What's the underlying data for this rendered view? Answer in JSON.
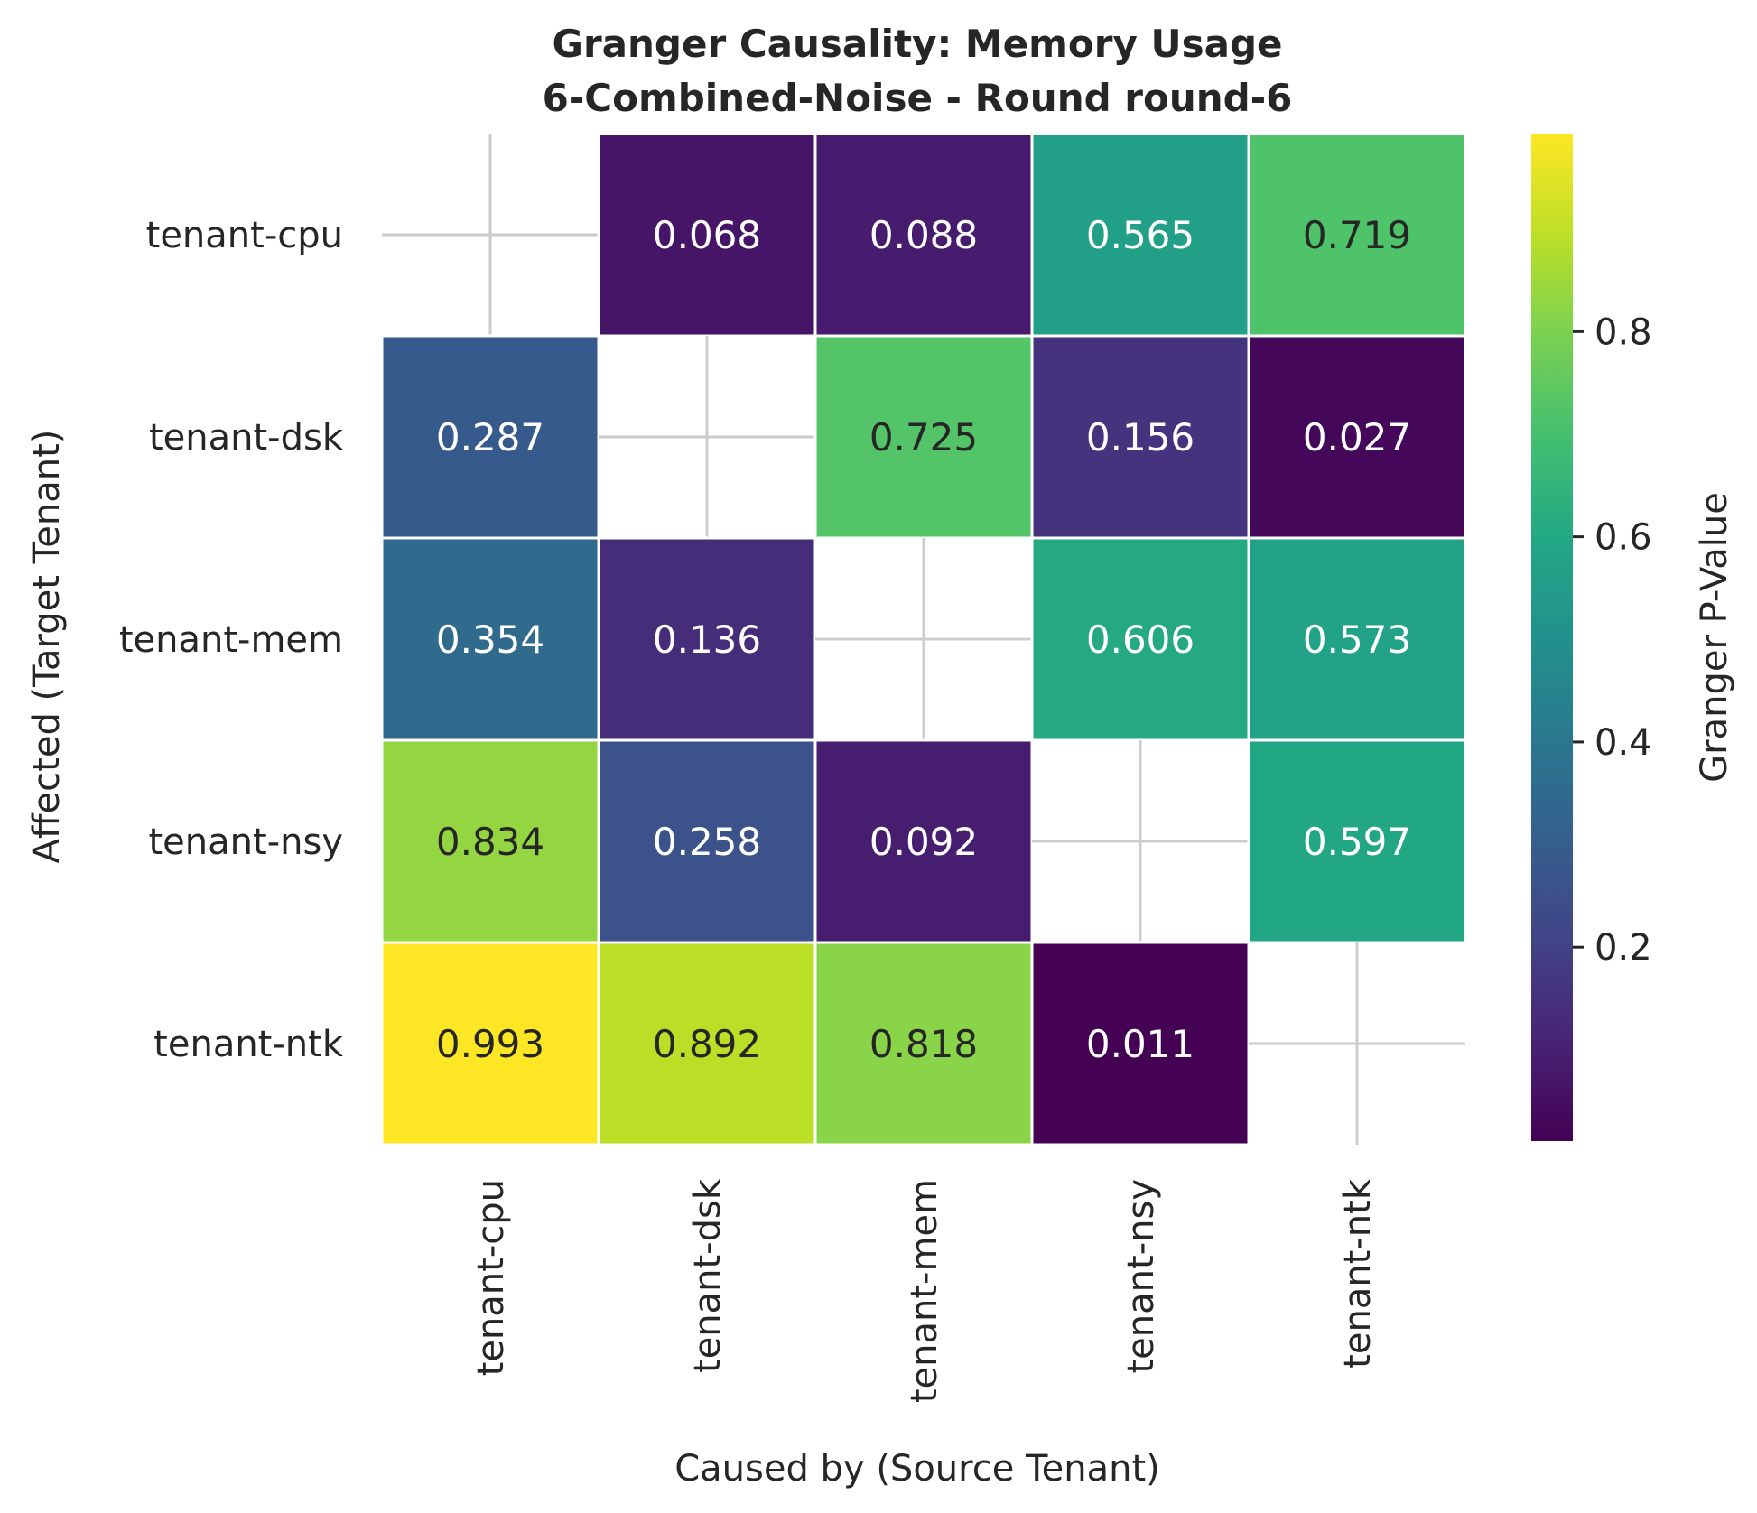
{
  "chart_data": {
    "type": "heatmap",
    "title_line1": "Granger Causality: Memory Usage",
    "title_line2": "6-Combined-Noise - Round round-6",
    "xlabel": "Caused by (Source Tenant)",
    "ylabel": "Affected (Target Tenant)",
    "x_categories": [
      "tenant-cpu",
      "tenant-dsk",
      "tenant-mem",
      "tenant-nsy",
      "tenant-ntk"
    ],
    "y_categories": [
      "tenant-cpu",
      "tenant-dsk",
      "tenant-mem",
      "tenant-nsy",
      "tenant-ntk"
    ],
    "values": [
      [
        null,
        0.068,
        0.088,
        0.565,
        0.719
      ],
      [
        0.287,
        null,
        0.725,
        0.156,
        0.027
      ],
      [
        0.354,
        0.136,
        null,
        0.606,
        0.573
      ],
      [
        0.834,
        0.258,
        0.092,
        null,
        0.597
      ],
      [
        0.993,
        0.892,
        0.818,
        0.011,
        null
      ]
    ],
    "colormap": "viridis",
    "colorbar": {
      "label": "Granger P-Value",
      "range": [
        0.011,
        0.993
      ],
      "ticks": [
        0.2,
        0.4,
        0.6,
        0.8
      ],
      "tick_labels": [
        "0.2",
        "0.4",
        "0.6",
        "0.8"
      ]
    },
    "diagonal": "masked with crosshair gridlines",
    "colors": {
      "text_dark": "#262626",
      "text_light": "#ffffff",
      "grid": "#cccccc"
    }
  }
}
